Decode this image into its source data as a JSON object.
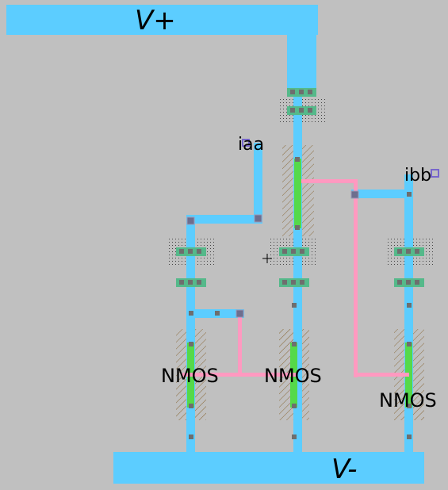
{
  "labels": {
    "vplus": "V+",
    "vminus": "V-",
    "iaa": "iaa",
    "ibb": "ibb",
    "nmos_left": "NMOS",
    "nmos_mid": "NMOS",
    "nmos_right": "NMOS"
  },
  "colors": {
    "background": "#c0c0c0",
    "metal": "#5ccdff",
    "poly": "#ff99c0",
    "gate_active": "#55d94a",
    "diffusion": "#55b98a",
    "contact": "#6e6e6e",
    "via": "#7a7a9a",
    "pin": "#7766cc"
  }
}
